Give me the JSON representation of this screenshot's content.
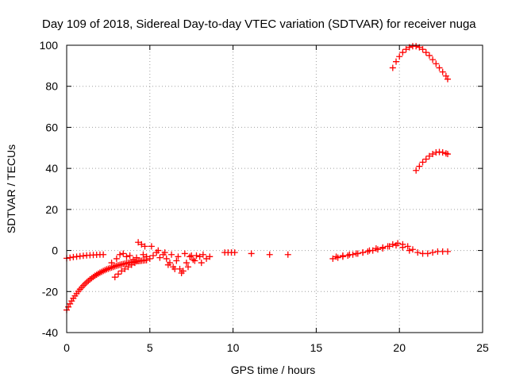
{
  "chart_data": {
    "type": "scatter",
    "title": "Day 109 of 2018, Sidereal Day-to-day VTEC variation (SDTVAR) for receiver nuga",
    "xlabel": "GPS time / hours",
    "ylabel": "SDTVAR / TECUs",
    "xlim": [
      0,
      25
    ],
    "ylim": [
      -40,
      100
    ],
    "xticks": [
      0,
      5,
      10,
      15,
      20,
      25
    ],
    "yticks": [
      -40,
      -20,
      0,
      20,
      40,
      60,
      80,
      100
    ],
    "grid": true,
    "marker": "+",
    "color": "#ff0000",
    "series": [
      {
        "name": "steep-rise-track",
        "x": [
          0.0,
          0.1,
          0.2,
          0.3,
          0.4,
          0.5,
          0.6,
          0.7,
          0.8,
          0.9,
          1.0,
          1.1,
          1.2,
          1.3,
          1.4,
          1.5,
          1.6,
          1.7,
          1.8,
          1.9,
          2.0,
          2.1,
          2.2,
          2.3,
          2.4,
          2.5,
          2.6,
          2.7,
          2.8,
          2.9,
          3.0,
          3.1,
          3.2,
          3.3,
          3.4,
          3.5,
          3.6,
          3.7,
          3.8,
          3.9,
          4.0,
          4.1,
          4.2,
          4.3,
          4.4,
          4.5,
          4.6,
          4.7,
          4.8
        ],
        "y": [
          -29.0,
          -27.5,
          -26.0,
          -24.6,
          -23.3,
          -22.1,
          -21.0,
          -19.9,
          -18.9,
          -18.0,
          -17.1,
          -16.3,
          -15.5,
          -14.8,
          -14.1,
          -13.5,
          -12.9,
          -12.3,
          -11.8,
          -11.3,
          -10.8,
          -10.4,
          -10.0,
          -9.6,
          -9.2,
          -8.9,
          -8.6,
          -8.3,
          -8.0,
          -7.7,
          -7.4,
          -7.2,
          -7.0,
          -6.8,
          -6.6,
          -6.4,
          -6.2,
          -6.0,
          -5.9,
          -5.7,
          -5.6,
          -5.4,
          -5.3,
          -5.2,
          -5.1,
          -5.0,
          -4.9,
          -4.8,
          -4.7
        ]
      },
      {
        "name": "near-zero-track-a",
        "x": [
          0.0,
          0.2,
          0.4,
          0.6,
          0.8,
          1.0,
          1.2,
          1.4,
          1.6,
          1.8,
          2.0,
          2.2
        ],
        "y": [
          -3.8,
          -3.5,
          -3.2,
          -3.0,
          -2.8,
          -2.6,
          -2.4,
          -2.3,
          -2.2,
          -2.1,
          -2.0,
          -2.0
        ]
      },
      {
        "name": "dip-track",
        "x": [
          2.9,
          3.1,
          3.3,
          3.5,
          3.7,
          3.9,
          4.1
        ],
        "y": [
          -13.0,
          -11.5,
          -10.0,
          -9.0,
          -8.0,
          -7.0,
          -6.0
        ]
      },
      {
        "name": "scatter-cluster",
        "x": [
          2.7,
          3.0,
          3.2,
          3.4,
          3.6,
          3.8,
          4.0,
          4.2,
          4.4,
          4.6,
          4.8,
          5.0,
          5.2,
          5.4,
          5.6,
          5.8,
          6.0,
          6.2,
          6.4,
          6.6,
          6.8,
          7.0,
          7.2,
          7.4,
          7.6,
          7.8,
          8.0,
          8.2,
          8.4,
          8.6,
          5.1,
          5.5,
          5.9,
          6.3,
          6.7,
          7.1,
          7.5,
          4.3,
          4.5,
          4.7,
          6.1,
          6.5,
          6.9,
          7.3,
          7.7,
          8.1
        ],
        "y": [
          -6.0,
          -4.0,
          -2.0,
          -1.5,
          -3.0,
          -2.5,
          -4.5,
          -3.5,
          -5.0,
          -2.0,
          -3.0,
          -4.0,
          -2.5,
          -1.0,
          -3.5,
          -2.0,
          -4.0,
          -6.0,
          -8.0,
          -5.0,
          -9.0,
          -10.0,
          -6.0,
          -3.0,
          -4.5,
          -2.5,
          -3.0,
          -2.0,
          -4.0,
          -3.0,
          2.0,
          0.0,
          -1.0,
          -2.0,
          -3.0,
          -1.5,
          -2.5,
          4.0,
          3.0,
          2.0,
          -7.0,
          -9.0,
          -11.0,
          -8.0,
          -5.0,
          -6.0
        ]
      },
      {
        "name": "sparse-points",
        "x": [
          9.5,
          9.7,
          9.9,
          10.1,
          11.1,
          12.2,
          13.3
        ],
        "y": [
          -1.0,
          -1.0,
          -1.0,
          -1.0,
          -1.5,
          -2.0,
          -2.0
        ]
      },
      {
        "name": "evening-band",
        "x": [
          16.0,
          16.3,
          16.6,
          16.9,
          17.2,
          17.5,
          17.8,
          18.1,
          18.4,
          18.7,
          19.0,
          19.3,
          19.6,
          19.9,
          20.2,
          20.5,
          20.8,
          21.1,
          21.4,
          21.7,
          22.0,
          22.3,
          22.6,
          22.9
        ],
        "y": [
          -4.0,
          -3.5,
          -3.0,
          -2.5,
          -2.0,
          -1.5,
          -1.0,
          -0.5,
          0.0,
          0.5,
          1.0,
          2.0,
          3.0,
          3.5,
          3.0,
          2.0,
          0.5,
          -1.0,
          -1.5,
          -1.5,
          -1.0,
          -0.5,
          -0.5,
          -0.5
        ]
      },
      {
        "name": "evening-band-lower",
        "x": [
          16.2,
          16.6,
          17.0,
          17.4,
          17.8,
          18.2,
          18.6,
          19.0,
          19.4,
          19.8,
          20.2,
          20.6
        ],
        "y": [
          -3.0,
          -2.5,
          -2.0,
          -1.5,
          -1.0,
          0.0,
          1.0,
          1.5,
          2.0,
          2.5,
          1.5,
          0.0
        ]
      },
      {
        "name": "arc-high",
        "x": [
          19.6,
          19.8,
          20.0,
          20.2,
          20.4,
          20.6,
          20.8,
          21.0,
          21.2,
          21.4,
          21.6,
          21.8,
          22.0,
          22.2,
          22.4,
          22.6,
          22.8,
          22.9
        ],
        "y": [
          89.0,
          92.0,
          94.5,
          96.5,
          98.0,
          99.0,
          99.5,
          99.5,
          99.0,
          98.0,
          96.5,
          95.0,
          93.0,
          91.0,
          89.0,
          87.0,
          85.0,
          83.5
        ]
      },
      {
        "name": "arc-mid",
        "x": [
          21.0,
          21.2,
          21.4,
          21.6,
          21.8,
          22.0,
          22.2,
          22.4,
          22.6,
          22.8,
          22.9
        ],
        "y": [
          39.0,
          41.0,
          43.0,
          44.5,
          46.0,
          47.0,
          47.8,
          48.0,
          47.8,
          47.3,
          47.0
        ]
      }
    ]
  }
}
